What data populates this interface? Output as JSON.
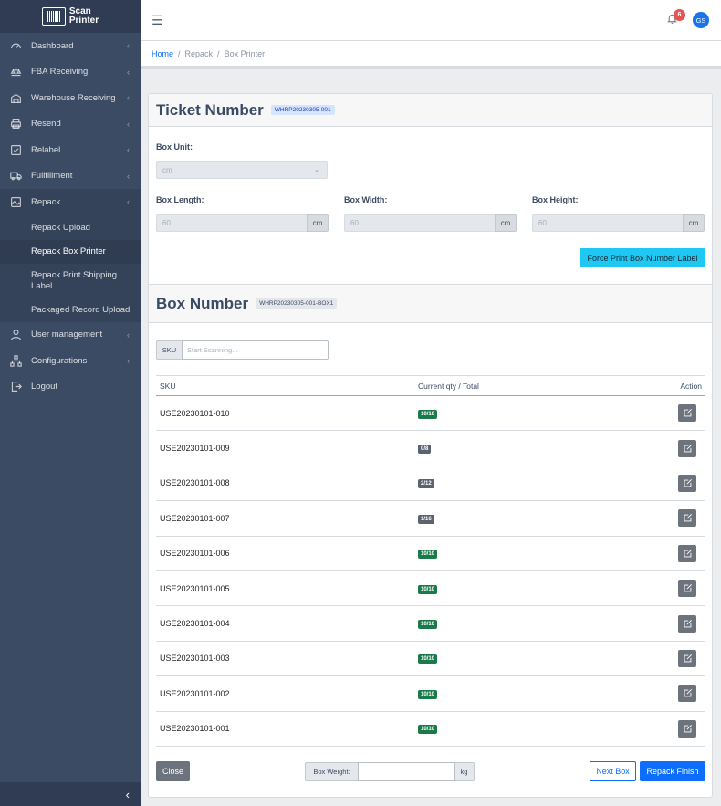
{
  "brand": {
    "line1": "Scan",
    "line2": "Printer"
  },
  "sidebar": {
    "items": [
      {
        "label": "Dashboard",
        "icon": "speedometer-icon"
      },
      {
        "label": "FBA Receiving",
        "icon": "scale-icon"
      },
      {
        "label": "Warehouse Receiving",
        "icon": "warehouse-icon"
      },
      {
        "label": "Resend",
        "icon": "printer-icon"
      },
      {
        "label": "Relabel",
        "icon": "checklist-icon"
      },
      {
        "label": "Fullfillment",
        "icon": "truck-icon"
      },
      {
        "label": "Repack",
        "icon": "image-icon"
      }
    ],
    "repack_sub": [
      {
        "label": "Repack Upload"
      },
      {
        "label": "Repack Box Printer"
      },
      {
        "label": "Repack Print Shipping Label"
      },
      {
        "label": "Packaged Record Upload"
      }
    ],
    "bottom_items": [
      {
        "label": "User management",
        "icon": "user-icon"
      },
      {
        "label": "Configurations",
        "icon": "sitemap-icon"
      },
      {
        "label": "Logout",
        "icon": "logout-icon"
      }
    ],
    "toggler": "‹"
  },
  "header": {
    "menu_glyph": "☰",
    "notif_count": "6",
    "avatar_initials": "GS"
  },
  "breadcrumb": [
    "Home",
    "Repack",
    "Box Printer"
  ],
  "ticket": {
    "title": "Ticket Number",
    "code": "WHRP20230305-001",
    "box_unit_label": "Box Unit:",
    "box_unit_value": "cm",
    "length_label": "Box Length:",
    "width_label": "Box Width:",
    "height_label": "Box Height:",
    "length_value": "60",
    "width_value": "60",
    "height_value": "60",
    "unit": "cm",
    "force_print": "Force Print Box Number Label"
  },
  "box": {
    "title": "Box Number",
    "code": "WHRP20230305-001-BOX1",
    "sku_label": "SKU",
    "sku_placeholder": "Start Scanning..."
  },
  "table": {
    "headers": [
      "SKU",
      "Current qty / Total",
      "Action"
    ],
    "rows": [
      {
        "sku": "USE20230101-010",
        "qty": "10/10",
        "status": "complete"
      },
      {
        "sku": "USE20230101-009",
        "qty": "0/8",
        "status": "pending"
      },
      {
        "sku": "USE20230101-008",
        "qty": "2/12",
        "status": "pending"
      },
      {
        "sku": "USE20230101-007",
        "qty": "1/16",
        "status": "pending"
      },
      {
        "sku": "USE20230101-006",
        "qty": "10/10",
        "status": "complete"
      },
      {
        "sku": "USE20230101-005",
        "qty": "10/10",
        "status": "complete"
      },
      {
        "sku": "USE20230101-004",
        "qty": "10/10",
        "status": "complete"
      },
      {
        "sku": "USE20230101-003",
        "qty": "10/10",
        "status": "complete"
      },
      {
        "sku": "USE20230101-002",
        "qty": "10/10",
        "status": "complete"
      },
      {
        "sku": "USE20230101-001",
        "qty": "10/10",
        "status": "complete"
      }
    ]
  },
  "footer": {
    "close": "Close",
    "weight_label": "Box Weight:",
    "weight_unit": "kg",
    "next_box": "Next Box",
    "repack_finish": "Repack Finish"
  },
  "colors": {
    "sidebar": "#3c4b64",
    "primary": "#0d6efd",
    "info": "#1ec8f2",
    "success": "#1b7a4a",
    "secondary": "#6d737c",
    "danger": "#e55353"
  }
}
